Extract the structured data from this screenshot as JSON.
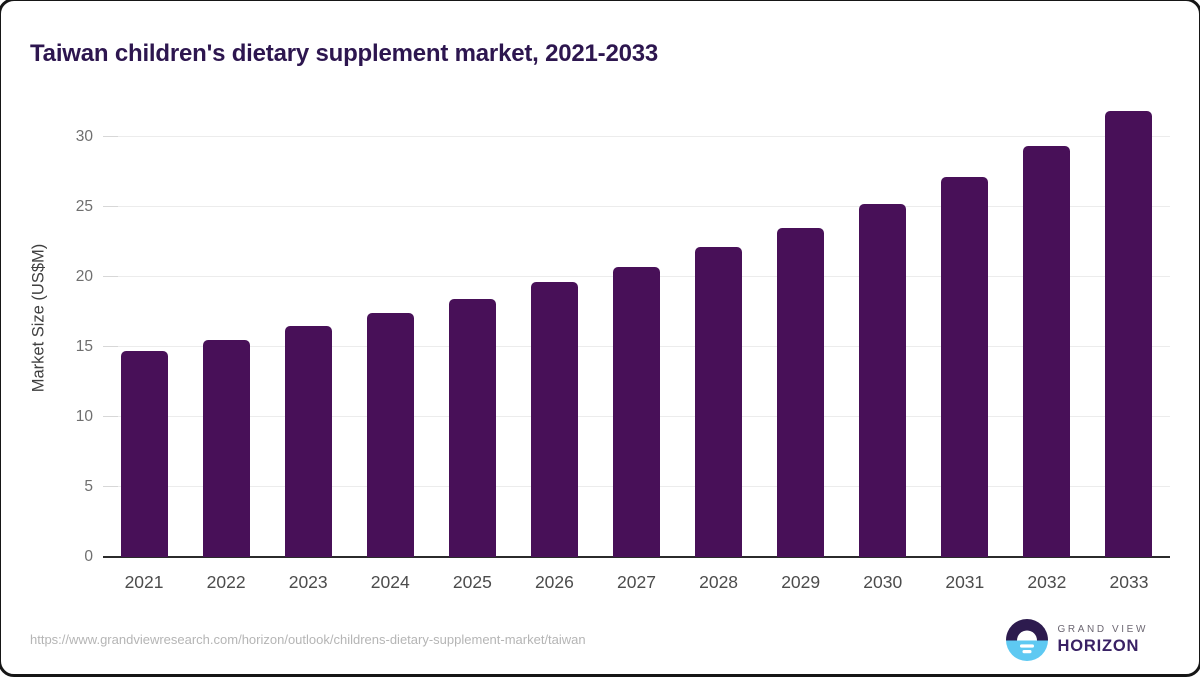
{
  "title": "Taiwan children's dietary supplement market, 2021-2033",
  "chart_data": {
    "type": "bar",
    "title": "Taiwan children's dietary supplement market, 2021-2033",
    "categories": [
      "2021",
      "2022",
      "2023",
      "2024",
      "2025",
      "2026",
      "2027",
      "2028",
      "2029",
      "2030",
      "2031",
      "2032",
      "2033"
    ],
    "values": [
      14.7,
      15.5,
      16.5,
      17.4,
      18.4,
      19.6,
      20.7,
      22.1,
      23.5,
      25.2,
      27.1,
      29.3,
      31.8
    ],
    "xlabel": "",
    "ylabel": "Market Size (US$M)",
    "ylim": [
      0,
      31.9
    ],
    "yticks": [
      0,
      5,
      10,
      15,
      20,
      25,
      30
    ],
    "grid": true,
    "legend": "none",
    "bar_color": "#481058"
  },
  "colors": {
    "bar": "#481058",
    "title": "#2d164f",
    "axis_line": "#2b2b2b",
    "gridline": "#ececec",
    "logo_dark_purple": "#2d1b4e",
    "logo_blue": "#5ec9f2",
    "logo_text_purple": "#392164"
  },
  "footer": {
    "source_url": "https://www.grandviewresearch.com/horizon/outlook/childrens-dietary-supplement-market/taiwan",
    "logo": {
      "line1": "GRAND VIEW",
      "line2": "HORIZON"
    }
  }
}
